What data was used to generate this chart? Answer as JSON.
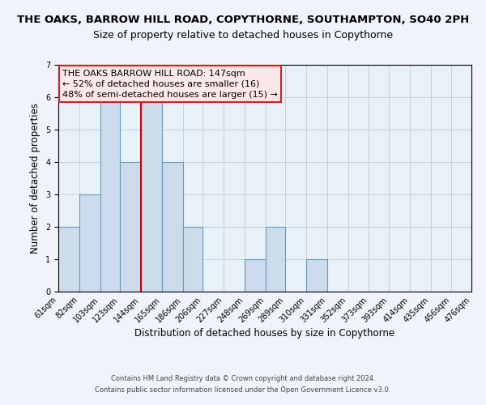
{
  "title": "THE OAKS, BARROW HILL ROAD, COPYTHORNE, SOUTHAMPTON, SO40 2PH",
  "subtitle": "Size of property relative to detached houses in Copythorne",
  "xlabel": "Distribution of detached houses by size in Copythorne",
  "ylabel": "Number of detached properties",
  "bin_edges": [
    61,
    82,
    103,
    123,
    144,
    165,
    186,
    206,
    227,
    248,
    269,
    289,
    310,
    331,
    352,
    373,
    393,
    414,
    435,
    456,
    476
  ],
  "bar_heights": [
    2,
    3,
    6,
    4,
    6,
    4,
    2,
    0,
    0,
    1,
    2,
    0,
    1,
    0,
    0,
    0,
    0,
    0,
    0,
    0
  ],
  "bar_color": "#ccdcec",
  "bar_edge_color": "#6699bb",
  "red_line_x": 144,
  "ylim": [
    0,
    7
  ],
  "yticks": [
    0,
    1,
    2,
    3,
    4,
    5,
    6,
    7
  ],
  "background_color": "#e8f0f8",
  "fig_background_color": "#f0f4fa",
  "grid_color": "#bbccdd",
  "annotation_box_text": "THE OAKS BARROW HILL ROAD: 147sqm\n← 52% of detached houses are smaller (16)\n48% of semi-detached houses are larger (15) →",
  "annotation_box_facecolor": "#fce8e8",
  "annotation_box_edge_color": "#cc2222",
  "footer_line1": "Contains HM Land Registry data © Crown copyright and database right 2024.",
  "footer_line2": "Contains public sector information licensed under the Open Government Licence v3.0.",
  "title_fontsize": 9.5,
  "subtitle_fontsize": 9,
  "tick_label_fontsize": 7,
  "axis_label_fontsize": 8.5,
  "annotation_fontsize": 8,
  "footer_fontsize": 6
}
